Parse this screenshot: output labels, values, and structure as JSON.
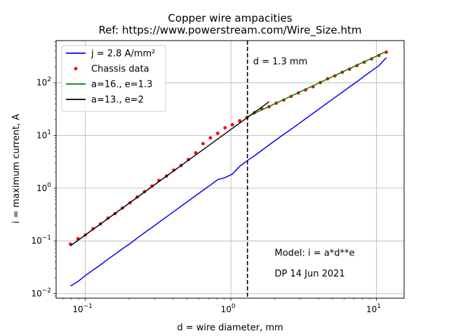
{
  "chart_data": {
    "type": "scatter",
    "title": "Copper wire ampacities",
    "subtitle": "Ref:  https://www.powerstream.com/Wire_Size.htm",
    "xlabel": "d = wire diameter, mm",
    "ylabel": "i = maximum current, A",
    "xscale": "log",
    "yscale": "log",
    "xlim": [
      0.063,
      15.5
    ],
    "ylim": [
      0.0082,
      630
    ],
    "grid": true,
    "legend_placement": "upper-left",
    "x_ticks": [
      {
        "value": 0.1,
        "base": "10",
        "exp": "−1"
      },
      {
        "value": 1,
        "base": "10",
        "exp": "0"
      },
      {
        "value": 10,
        "base": "10",
        "exp": "1"
      }
    ],
    "y_ticks": [
      {
        "value": 0.01,
        "base": "10",
        "exp": "−2"
      },
      {
        "value": 0.1,
        "base": "10",
        "exp": "−1"
      },
      {
        "value": 1,
        "base": "10",
        "exp": "0"
      },
      {
        "value": 10,
        "base": "10",
        "exp": "1"
      },
      {
        "value": 100,
        "base": "10",
        "exp": "2"
      }
    ],
    "vline": {
      "x": 1.3,
      "label": "d = 1.3 mm",
      "color": "#000000",
      "style": "dashed"
    },
    "annotations": [
      {
        "text": "Model:  i = a*d**e",
        "x": 2.0,
        "y": 0.052
      },
      {
        "text": "DP 14 Jun 2021",
        "x": 2.0,
        "y": 0.021
      }
    ],
    "series": [
      {
        "name": "j = 2.8 A/mm²",
        "kind": "line",
        "color": "#0000ff",
        "x": [
          0.079,
          0.089,
          0.1,
          0.113,
          0.127,
          0.143,
          0.16,
          0.18,
          0.203,
          0.227,
          0.255,
          0.287,
          0.32,
          0.361,
          0.405,
          0.455,
          0.511,
          0.573,
          0.644,
          0.724,
          0.812,
          0.912,
          1.024,
          1.15,
          1.29,
          1.45,
          1.63,
          1.83,
          2.05,
          2.31,
          2.59,
          2.91,
          3.26,
          3.67,
          4.12,
          4.62,
          5.19,
          5.83,
          6.54,
          7.35,
          8.25,
          9.27,
          10.4,
          11.7
        ],
        "y": [
          0.014,
          0.017,
          0.022,
          0.028,
          0.035,
          0.045,
          0.056,
          0.071,
          0.089,
          0.113,
          0.143,
          0.18,
          0.225,
          0.286,
          0.36,
          0.455,
          0.574,
          0.722,
          0.91,
          1.15,
          1.45,
          1.59,
          1.85,
          2.6,
          3.3,
          4.1,
          5.2,
          6.6,
          8.3,
          10.5,
          13.1,
          16.5,
          20.8,
          26.3,
          33.2,
          41.7,
          52.5,
          66.3,
          83.5,
          105,
          133,
          168,
          211,
          300
        ]
      },
      {
        "name": "Chassis data",
        "kind": "points",
        "color": "#ff0000",
        "x": [
          0.079,
          0.089,
          0.1,
          0.113,
          0.127,
          0.143,
          0.16,
          0.18,
          0.203,
          0.227,
          0.255,
          0.287,
          0.32,
          0.361,
          0.405,
          0.455,
          0.511,
          0.573,
          0.644,
          0.724,
          0.812,
          0.912,
          1.024,
          1.15,
          1.29,
          1.45,
          1.63,
          1.83,
          2.05,
          2.31,
          2.59,
          2.91,
          3.26,
          3.67,
          4.12,
          4.62,
          5.19,
          5.83,
          6.54,
          7.35,
          8.25,
          9.27,
          10.4,
          11.7
        ],
        "y": [
          0.087,
          0.11,
          0.13,
          0.17,
          0.21,
          0.27,
          0.33,
          0.42,
          0.53,
          0.68,
          0.86,
          1.1,
          1.4,
          1.7,
          2.2,
          2.7,
          3.5,
          4.7,
          7,
          9,
          11,
          14,
          16,
          19,
          22,
          27,
          32,
          35,
          41,
          47,
          55,
          64,
          73,
          84,
          101,
          119,
          135,
          158,
          181,
          211,
          245,
          283,
          328,
          380
        ]
      },
      {
        "name": "a=16., e=1.3",
        "kind": "line",
        "color": "#008000",
        "x": [
          1.29,
          1.83,
          2.59,
          3.67,
          5.19,
          7.35,
          10.4,
          11.7
        ],
        "y": [
          22.5,
          35.5,
          55.8,
          87.6,
          137.5,
          215.5,
          338,
          395
        ]
      },
      {
        "name": "a=13., e=2",
        "kind": "line",
        "color": "#000000",
        "x": [
          0.079,
          1.83
        ],
        "y": [
          0.081,
          43.5
        ]
      }
    ]
  }
}
